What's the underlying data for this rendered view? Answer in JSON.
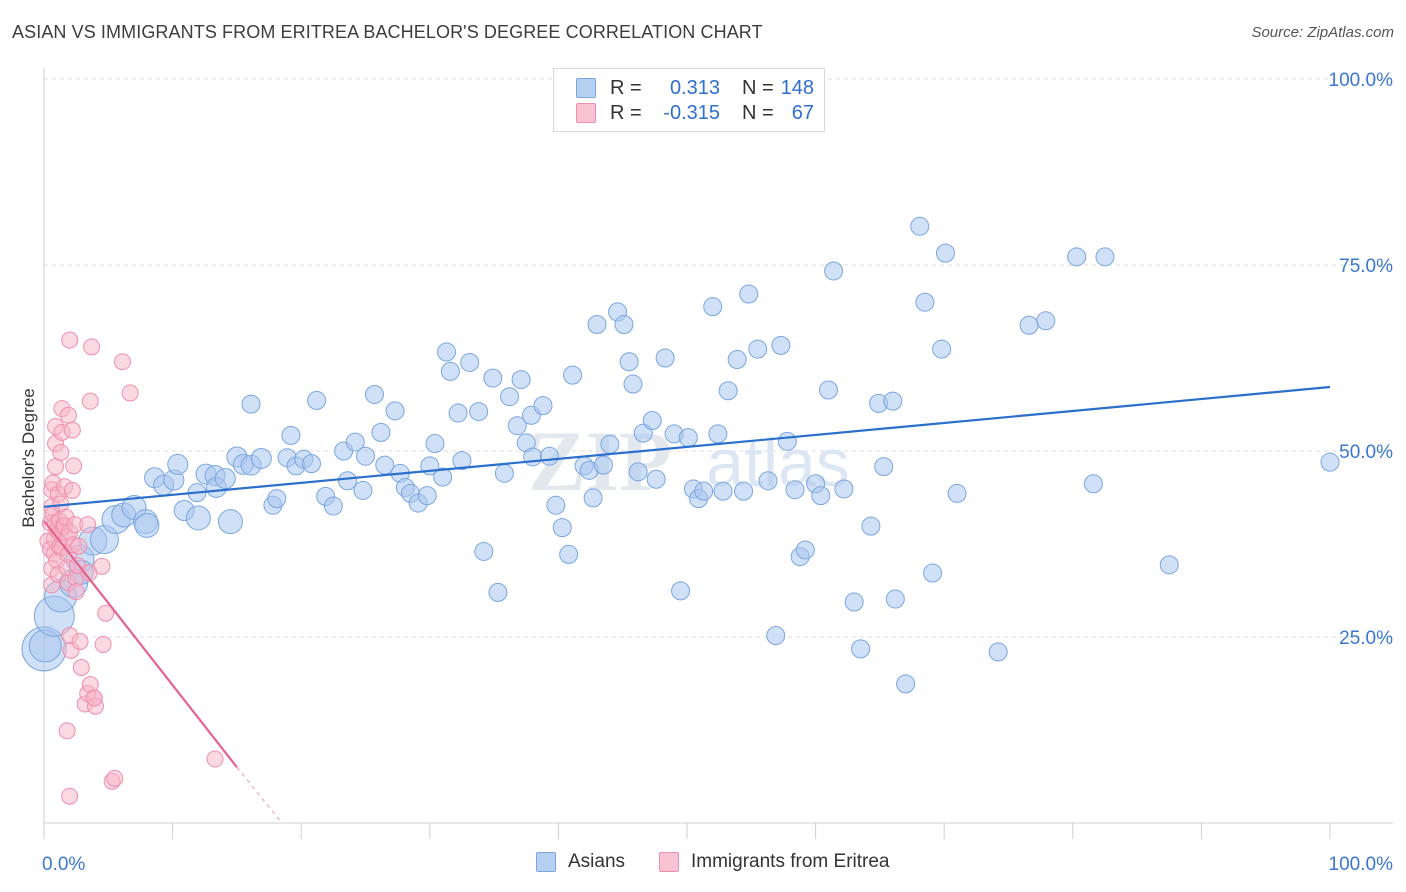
{
  "header": {
    "title": "ASIAN VS IMMIGRANTS FROM ERITREA BACHELOR'S DEGREE CORRELATION CHART",
    "source": "Source: ZipAtlas.com"
  },
  "legend_top": {
    "rows": [
      {
        "r_label": "R =",
        "r_value": "0.313",
        "n_label": "N =",
        "n_value": "148"
      },
      {
        "r_label": "R =",
        "r_value": "-0.315",
        "n_label": "N =",
        "n_value": "67"
      }
    ]
  },
  "watermark": {
    "zip": "ZIP",
    "atlas": "atlas"
  },
  "bottom_legend": {
    "asians": "Asians",
    "eritrea": "Immigrants from Eritrea"
  },
  "colors": {
    "asian_fill": "#a9c7ef",
    "asian_stroke": "#7aa6e0",
    "asian_line": "#2a6fcc",
    "eritrea_fill": "#f7b3c8",
    "eritrea_stroke": "#ef8fac",
    "eritrea_line": "#e5638f",
    "tick_label": "#3a78d0",
    "grid": "#dddddd"
  },
  "chart_data": {
    "type": "scatter",
    "title": "ASIAN VS IMMIGRANTS FROM ERITREA BACHELOR'S DEGREE CORRELATION CHART",
    "xlabel": "",
    "ylabel": "Bachelor's Degree",
    "xlim": [
      0,
      100
    ],
    "ylim": [
      0,
      100
    ],
    "x_tick_labels": [
      "0.0%",
      "100.0%"
    ],
    "y_tick_labels": [
      "25.0%",
      "50.0%",
      "75.0%",
      "100.0%"
    ],
    "y_ticks": [
      25,
      50,
      75,
      100
    ],
    "grid": true,
    "legend_position": "bottom",
    "series": [
      {
        "name": "Asians",
        "r": 0.313,
        "n": 148,
        "trend": {
          "x": [
            0,
            100
          ],
          "y": [
            42.5,
            58.6
          ]
        },
        "points": [
          [
            0,
            23.4,
            22
          ],
          [
            0.1,
            23.8,
            16
          ],
          [
            0.8,
            27.8,
            20
          ],
          [
            1.3,
            30.5,
            16
          ],
          [
            2.3,
            32.2,
            14
          ],
          [
            2.8,
            35.5,
            14
          ],
          [
            2.9,
            33.7,
            12
          ],
          [
            3.8,
            37.9,
            14
          ],
          [
            4.7,
            38.1,
            14
          ],
          [
            5.6,
            40.8,
            14
          ],
          [
            6.2,
            41.4,
            12
          ],
          [
            7.0,
            42.4,
            12
          ],
          [
            7.9,
            40.5,
            12
          ],
          [
            8.0,
            40.0,
            12
          ],
          [
            8.6,
            46.4,
            10
          ],
          [
            9.3,
            45.4,
            10
          ],
          [
            10.1,
            46.1,
            10
          ],
          [
            10.4,
            48.2,
            10
          ],
          [
            10.9,
            42.0,
            10
          ],
          [
            11.9,
            44.4,
            9
          ],
          [
            12.0,
            41.0,
            12
          ],
          [
            12.6,
            46.9,
            10
          ],
          [
            13.3,
            46.7,
            10
          ],
          [
            13.4,
            45.1,
            10
          ],
          [
            14.1,
            46.3,
            10
          ],
          [
            14.5,
            40.5,
            12
          ],
          [
            15.0,
            49.2,
            10
          ],
          [
            15.5,
            48.2,
            10
          ],
          [
            16.1,
            48.1,
            10
          ],
          [
            16.1,
            56.3,
            9
          ],
          [
            16.9,
            49.0,
            10
          ],
          [
            17.8,
            42.7,
            9
          ],
          [
            18.1,
            43.6,
            9
          ],
          [
            18.9,
            49.1,
            9
          ],
          [
            19.2,
            52.1,
            9
          ],
          [
            19.6,
            48.0,
            9
          ],
          [
            20.2,
            48.9,
            9
          ],
          [
            20.8,
            48.3,
            9
          ],
          [
            21.2,
            56.8,
            9
          ],
          [
            21.9,
            43.9,
            9
          ],
          [
            22.5,
            42.6,
            9
          ],
          [
            23.3,
            50.0,
            9
          ],
          [
            23.6,
            46.0,
            9
          ],
          [
            24.2,
            51.2,
            9
          ],
          [
            24.8,
            44.7,
            9
          ],
          [
            25.0,
            49.3,
            9
          ],
          [
            25.7,
            57.6,
            9
          ],
          [
            26.2,
            52.5,
            9
          ],
          [
            26.5,
            48.1,
            9
          ],
          [
            27.3,
            55.4,
            9
          ],
          [
            27.7,
            47.0,
            9
          ],
          [
            28.1,
            45.1,
            9
          ],
          [
            28.5,
            44.3,
            9
          ],
          [
            29.1,
            43.0,
            9
          ],
          [
            29.8,
            44.0,
            9
          ],
          [
            30.0,
            48.0,
            9
          ],
          [
            30.4,
            51.0,
            9
          ],
          [
            31.0,
            46.5,
            9
          ],
          [
            31.3,
            63.3,
            9
          ],
          [
            31.6,
            60.7,
            9
          ],
          [
            32.2,
            55.1,
            9
          ],
          [
            32.5,
            48.7,
            9
          ],
          [
            33.1,
            61.9,
            9
          ],
          [
            33.8,
            55.3,
            9
          ],
          [
            34.2,
            36.5,
            9
          ],
          [
            34.9,
            59.8,
            9
          ],
          [
            35.3,
            31.0,
            9
          ],
          [
            35.8,
            47.0,
            9
          ],
          [
            36.2,
            57.3,
            9
          ],
          [
            36.8,
            53.4,
            9
          ],
          [
            37.1,
            59.6,
            9
          ],
          [
            37.5,
            51.1,
            9
          ],
          [
            37.9,
            54.8,
            9
          ],
          [
            38.0,
            49.2,
            9
          ],
          [
            38.8,
            56.1,
            9
          ],
          [
            39.3,
            49.3,
            9
          ],
          [
            39.8,
            42.7,
            9
          ],
          [
            40.3,
            39.7,
            9
          ],
          [
            40.8,
            36.1,
            9
          ],
          [
            41.1,
            60.2,
            9
          ],
          [
            42.0,
            48.0,
            9
          ],
          [
            42.4,
            47.4,
            9
          ],
          [
            42.7,
            43.7,
            9
          ],
          [
            43.0,
            67.0,
            9
          ],
          [
            43.5,
            48.1,
            9
          ],
          [
            44.0,
            50.9,
            9
          ],
          [
            44.6,
            68.7,
            9
          ],
          [
            45.1,
            67.0,
            9
          ],
          [
            45.5,
            62.0,
            9
          ],
          [
            45.8,
            59.0,
            9
          ],
          [
            46.2,
            47.2,
            9
          ],
          [
            46.6,
            52.4,
            9
          ],
          [
            47.3,
            54.1,
            9
          ],
          [
            47.6,
            46.2,
            9
          ],
          [
            48.3,
            62.5,
            9
          ],
          [
            49.0,
            52.3,
            9
          ],
          [
            49.5,
            31.2,
            9
          ],
          [
            50.1,
            51.8,
            9
          ],
          [
            50.5,
            44.9,
            9
          ],
          [
            50.9,
            43.6,
            9
          ],
          [
            51.3,
            44.6,
            9
          ],
          [
            52.0,
            69.4,
            9
          ],
          [
            52.4,
            52.3,
            9
          ],
          [
            52.8,
            44.6,
            9
          ],
          [
            53.2,
            58.1,
            9
          ],
          [
            53.9,
            62.3,
            9
          ],
          [
            54.4,
            44.6,
            9
          ],
          [
            54.8,
            71.1,
            9
          ],
          [
            55.5,
            63.7,
            9
          ],
          [
            56.3,
            46.0,
            9
          ],
          [
            56.9,
            25.2,
            9
          ],
          [
            57.3,
            64.2,
            9
          ],
          [
            57.8,
            51.3,
            9
          ],
          [
            58.4,
            44.8,
            9
          ],
          [
            58.8,
            35.8,
            9
          ],
          [
            59.2,
            36.7,
            9
          ],
          [
            60.0,
            45.6,
            9
          ],
          [
            60.4,
            44.0,
            9
          ],
          [
            61.0,
            58.2,
            9
          ],
          [
            61.4,
            74.2,
            9
          ],
          [
            62.2,
            44.9,
            9
          ],
          [
            63.0,
            29.7,
            9
          ],
          [
            63.5,
            23.4,
            9
          ],
          [
            64.3,
            39.9,
            9
          ],
          [
            64.9,
            56.4,
            9
          ],
          [
            65.3,
            47.9,
            9
          ],
          [
            66.0,
            56.7,
            9
          ],
          [
            66.2,
            30.1,
            9
          ],
          [
            67.0,
            18.7,
            9
          ],
          [
            68.1,
            80.2,
            9
          ],
          [
            68.5,
            70.0,
            9
          ],
          [
            69.1,
            33.6,
            9
          ],
          [
            69.8,
            63.7,
            9
          ],
          [
            70.1,
            76.6,
            9
          ],
          [
            71.0,
            44.3,
            9
          ],
          [
            74.2,
            23.0,
            9
          ],
          [
            76.6,
            66.9,
            9
          ],
          [
            77.9,
            67.5,
            9
          ],
          [
            80.3,
            76.1,
            9
          ],
          [
            81.6,
            45.6,
            9
          ],
          [
            82.5,
            76.1,
            9
          ],
          [
            87.5,
            34.7,
            9
          ],
          [
            100,
            48.5,
            9
          ]
        ]
      },
      {
        "name": "Immigrants from Eritrea",
        "r": -0.315,
        "n": 67,
        "trend": {
          "x": [
            0,
            15
          ],
          "y": [
            40.6,
            7.5
          ]
        },
        "trend_dashed": {
          "x": [
            15,
            18.5
          ],
          "y": [
            7.5,
            0
          ]
        },
        "points": [
          [
            0.3,
            37.9
          ],
          [
            0.5,
            36.8
          ],
          [
            0.5,
            40.3
          ],
          [
            0.6,
            34.2
          ],
          [
            0.6,
            32.0
          ],
          [
            0.6,
            44.8
          ],
          [
            0.6,
            42.5
          ],
          [
            0.7,
            45.7
          ],
          [
            0.7,
            41.5
          ],
          [
            0.8,
            38.2
          ],
          [
            0.8,
            36.2
          ],
          [
            0.9,
            53.3
          ],
          [
            0.9,
            51.0
          ],
          [
            0.9,
            47.9
          ],
          [
            0.9,
            40.2
          ],
          [
            1.0,
            39.4
          ],
          [
            1.0,
            35.3
          ],
          [
            1.1,
            33.4
          ],
          [
            1.1,
            44.2
          ],
          [
            1.2,
            38.9
          ],
          [
            1.2,
            37.1
          ],
          [
            1.2,
            40.6
          ],
          [
            1.3,
            42.9
          ],
          [
            1.3,
            49.8
          ],
          [
            1.4,
            55.7
          ],
          [
            1.4,
            52.5
          ],
          [
            1.4,
            37.0
          ],
          [
            1.5,
            39.8
          ],
          [
            1.6,
            40.0
          ],
          [
            1.6,
            45.2
          ],
          [
            1.7,
            41.1
          ],
          [
            1.8,
            38.4
          ],
          [
            1.8,
            34.3
          ],
          [
            1.9,
            54.8
          ],
          [
            1.9,
            32.3
          ],
          [
            1.9,
            36.1
          ],
          [
            2.0,
            39.1
          ],
          [
            2.0,
            25.2
          ],
          [
            2.1,
            23.2
          ],
          [
            2.2,
            52.8
          ],
          [
            2.2,
            44.7
          ],
          [
            2.3,
            48.0
          ],
          [
            2.3,
            37.4
          ],
          [
            2.4,
            40.1
          ],
          [
            2.5,
            32.9
          ],
          [
            2.5,
            31.1
          ],
          [
            2.6,
            34.6
          ],
          [
            2.7,
            37.2
          ],
          [
            2.8,
            24.4
          ],
          [
            2.9,
            20.9
          ],
          [
            3.2,
            16.0
          ],
          [
            3.4,
            17.4
          ],
          [
            3.6,
            18.6
          ],
          [
            3.9,
            16.8
          ],
          [
            3.4,
            40.1
          ],
          [
            3.5,
            33.6
          ],
          [
            4.0,
            15.7
          ],
          [
            1.8,
            12.4
          ],
          [
            2.0,
            64.9
          ],
          [
            3.6,
            56.7
          ],
          [
            3.7,
            64.0
          ],
          [
            3.9,
            16.8
          ],
          [
            4.5,
            34.5
          ],
          [
            4.6,
            24.0
          ],
          [
            4.8,
            28.2
          ],
          [
            5.3,
            5.6
          ],
          [
            5.5,
            6.0
          ],
          [
            6.1,
            62.0
          ],
          [
            6.7,
            57.8
          ],
          [
            13.3,
            8.6
          ],
          [
            2.0,
            3.6
          ]
        ]
      }
    ]
  }
}
